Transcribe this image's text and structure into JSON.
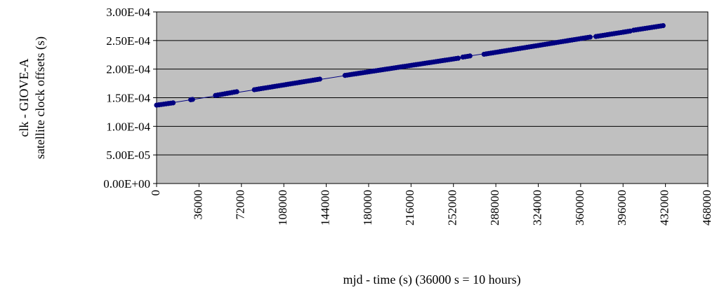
{
  "chart_data": {
    "type": "scatter",
    "title": "",
    "xlabel": "mjd - time (s) (36000 s = 10 hours)",
    "ylabel_lines": [
      "clk - GIOVE-A",
      "satellite clock offsets (s)"
    ],
    "xlim": [
      0,
      468000
    ],
    "ylim": [
      0,
      0.0003
    ],
    "x_ticks": [
      0,
      36000,
      72000,
      108000,
      144000,
      180000,
      216000,
      252000,
      288000,
      324000,
      360000,
      396000,
      432000,
      468000
    ],
    "x_tick_labels": [
      "0",
      "36000",
      "72000",
      "108000",
      "144000",
      "180000",
      "216000",
      "252000",
      "288000",
      "324000",
      "360000",
      "396000",
      "432000",
      "468000"
    ],
    "y_ticks": [
      0,
      5e-05,
      0.0001,
      0.00015,
      0.0002,
      0.00025,
      0.0003
    ],
    "y_tick_labels": [
      "0.00E+00",
      "5.00E-05",
      "1.00E-04",
      "1.50E-04",
      "2.00E-04",
      "2.50E-04",
      "3.00E-04"
    ],
    "grid": "horizontal",
    "plot_background": "#c0c0c0",
    "marker_color": "#000080",
    "line_color": "#000080",
    "trend_line": {
      "x": [
        0,
        430000
      ],
      "y": [
        0.000137,
        0.000276
      ]
    },
    "segments": [
      {
        "x": [
          0,
          14000
        ],
        "y": [
          0.000137,
          0.000141
        ]
      },
      {
        "x": [
          29000,
          30500
        ],
        "y": [
          0.0001465,
          0.000147
        ]
      },
      {
        "x": [
          50000,
          68000
        ],
        "y": [
          0.000154,
          0.0001605
        ]
      },
      {
        "x": [
          83000,
          138500
        ],
        "y": [
          0.000164,
          0.0001825
        ]
      },
      {
        "x": [
          160000,
          256000
        ],
        "y": [
          0.000189,
          0.000219
        ]
      },
      {
        "x": [
          260000,
          266000
        ],
        "y": [
          0.000221,
          0.000223
        ]
      },
      {
        "x": [
          278000,
          368000
        ],
        "y": [
          0.000226,
          0.000256
        ]
      },
      {
        "x": [
          373000,
          402000
        ],
        "y": [
          0.000257,
          0.0002665
        ]
      },
      {
        "x": [
          405000,
          430000
        ],
        "y": [
          0.000268,
          0.000276
        ]
      }
    ],
    "point_spacing": 1900
  }
}
